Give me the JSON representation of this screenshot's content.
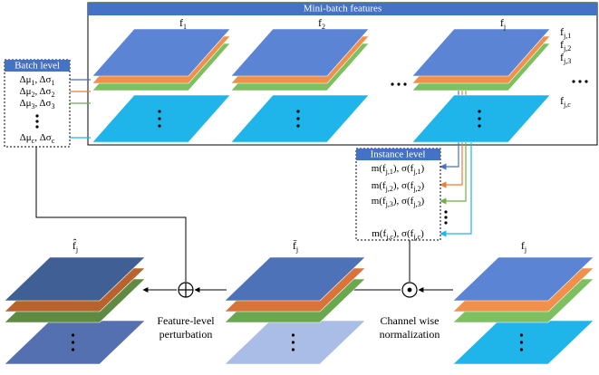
{
  "top_panel": {
    "title": "Mini-batch features",
    "stack_labels": [
      [
        {
          "text": "f"
        },
        {
          "sub": "1"
        }
      ],
      [
        {
          "text": "f"
        },
        {
          "sub": "2"
        }
      ],
      [
        {
          "text": "f"
        },
        {
          "sub": "j"
        }
      ]
    ],
    "channel_labels": [
      [
        {
          "text": "f"
        },
        {
          "sub": "j,1"
        }
      ],
      [
        {
          "text": "f"
        },
        {
          "sub": "j,2"
        }
      ],
      [
        {
          "text": "f"
        },
        {
          "sub": "j,3"
        }
      ],
      [
        {
          "text": "f"
        },
        {
          "sub": "j,c"
        }
      ]
    ]
  },
  "batch_level": {
    "title": "Batch level",
    "rows": [
      [
        {
          "text": "Δμ"
        },
        {
          "sub": "1"
        },
        {
          "text": ", Δσ"
        },
        {
          "sub": "1"
        }
      ],
      [
        {
          "text": "Δμ"
        },
        {
          "sub": "2"
        },
        {
          "text": ", Δσ"
        },
        {
          "sub": "2"
        }
      ],
      [
        {
          "text": "Δμ"
        },
        {
          "sub": "3"
        },
        {
          "text": ", Δσ"
        },
        {
          "sub": "3"
        }
      ],
      [
        {
          "text": "Δμ"
        },
        {
          "sub": "c"
        },
        {
          "text": ", Δσ"
        },
        {
          "sub": "c"
        }
      ]
    ]
  },
  "instance_level": {
    "title": "Instance level",
    "rows": [
      [
        {
          "text": "m(f"
        },
        {
          "sub": "j,1"
        },
        {
          "text": "), σ(f"
        },
        {
          "sub": "j,1"
        },
        {
          "text": ")"
        }
      ],
      [
        {
          "text": "m(f"
        },
        {
          "sub": "j,2"
        },
        {
          "text": "), σ(f"
        },
        {
          "sub": "j,2"
        },
        {
          "text": ")"
        }
      ],
      [
        {
          "text": "m(f"
        },
        {
          "sub": "j,3"
        },
        {
          "text": "), σ(f"
        },
        {
          "sub": "j,3"
        },
        {
          "text": ")"
        }
      ],
      [
        {
          "text": "m(f"
        },
        {
          "sub": "j,c"
        },
        {
          "text": "), σ(f"
        },
        {
          "sub": "j,c"
        },
        {
          "text": ")"
        }
      ]
    ]
  },
  "bottom": {
    "stack_labels": [
      [
        {
          "text": "f̂"
        },
        {
          "sub": "j"
        }
      ],
      [
        {
          "text": "f̄"
        },
        {
          "sub": "j"
        }
      ],
      [
        {
          "text": "f"
        },
        {
          "sub": "j"
        }
      ]
    ],
    "perturbation_label": [
      "Feature-level",
      "perturbation"
    ],
    "normalization_label": [
      "Channel wise",
      "normalization"
    ]
  }
}
